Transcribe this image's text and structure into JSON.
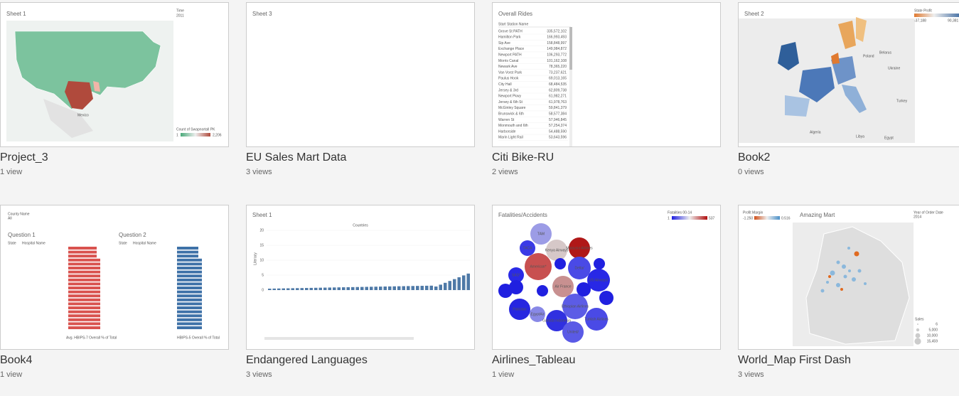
{
  "cards": [
    {
      "title": "Project_3",
      "views": "1 view",
      "thumb": {
        "sheet": "Sheet 1",
        "filter_label": "Time",
        "filter_value": "2011",
        "legend_title": "Count of Swapnortall PK",
        "legend_min": "1",
        "legend_max": "2,206",
        "map_label": "Mexico"
      }
    },
    {
      "title": "EU Sales Mart Data",
      "views": "3 views",
      "thumb": {
        "sheet": "Sheet 3"
      }
    },
    {
      "title": "Citi Bike-RU",
      "views": "2 views",
      "thumb": {
        "sheet": "Overall Rides",
        "column": "Start Station Name",
        "rows": [
          [
            "Grove St PATH",
            "335,572,102"
          ],
          [
            "Hamilton Park",
            "166,993,493"
          ],
          [
            "Sip Ave",
            "158,848,997"
          ],
          [
            "Exchange Place",
            "149,984,872"
          ],
          [
            "Newport PATH",
            "106,293,772"
          ],
          [
            "Morris Canal",
            "101,162,108"
          ],
          [
            "Newark Ave",
            "78,365,220"
          ],
          [
            "Van Vorst Park",
            "73,237,621"
          ],
          [
            "Paulus Hook",
            "69,013,165"
          ],
          [
            "City Hall",
            "68,484,535"
          ],
          [
            "Jersey & 3rd",
            "62,809,738"
          ],
          [
            "Newport Pkwy",
            "61,982,271"
          ],
          [
            "Jersey & 6th St",
            "61,978,763"
          ],
          [
            "McGinley Square",
            "59,841,379"
          ],
          [
            "Brunswick & 6th",
            "58,577,384"
          ],
          [
            "Warren St",
            "57,946,845"
          ],
          [
            "Monmouth and 6th",
            "57,254,374"
          ],
          [
            "Harborside",
            "54,488,590"
          ],
          [
            "Marin Light Rail",
            "53,643,596"
          ]
        ]
      }
    },
    {
      "title": "Book2",
      "views": "0 views",
      "thumb": {
        "sheet": "Sheet 2",
        "legend_title": "State Profit",
        "legend_min": "-37,188",
        "legend_max": "90,381",
        "places": [
          "Poland",
          "Belarus",
          "Ukraine",
          "Turkey",
          "Algeria",
          "Libya",
          "Egypt"
        ]
      }
    },
    {
      "title": "Book4",
      "views": "1 view",
      "thumb": {
        "filter_label": "County Name",
        "filter_value": "All",
        "q1": "Question 1",
        "q2": "Question 2",
        "state": "State",
        "hospital": "Hospital Name",
        "axis1": "Avg. HBIPS-7 Overall % of Total",
        "axis2": "HBIPS-5 Overall % of Total"
      }
    },
    {
      "title": "Endangered Languages",
      "views": "3 views",
      "thumb": {
        "sheet": "Sheet 1",
        "header": "Countries",
        "ylabel": "Literacy",
        "yticks": [
          "20",
          "15",
          "10",
          "5",
          "0"
        ]
      }
    },
    {
      "title": "Airlines_Tableau",
      "views": "1 view",
      "thumb": {
        "sheet": "Fatalities/Accidents",
        "legend_title": "Fatalities 00-14",
        "legend_min": "1",
        "legend_max": "537",
        "bubbles": [
          "TAM",
          "TACA",
          "Kenya Airways",
          "Malaysia Airlines",
          "American*",
          "Delta/",
          "US Airways/",
          "SAS*",
          "Air France",
          "Pakistan",
          "EgyptAir",
          "Ethiopian Airlines",
          "Turkish Airlines",
          "Garuda Indonesia",
          "United/"
        ]
      }
    },
    {
      "title": "World_Map First Dash",
      "views": "3 views",
      "thumb": {
        "sheet": "Amazing Mart",
        "legend_title": "Profit Margin",
        "legend_min": "-1.250",
        "legend_max": "0.516",
        "filter_label": "Year of Order Date",
        "filter_value": "2014",
        "size_title": "Sales",
        "sizes": [
          "6",
          "5,000",
          "10,000",
          "15,459"
        ]
      }
    }
  ]
}
